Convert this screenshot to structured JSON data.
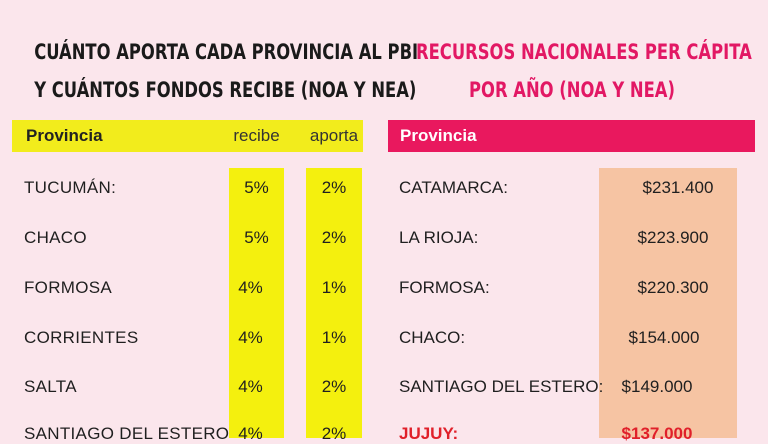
{
  "left": {
    "title_line1": "CUÁNTO APORTA CADA PROVINCIA AL PBI",
    "title_line2": "Y CUÁNTOS FONDOS RECIBE (NOA Y NEA)",
    "header": {
      "provincia": "Provincia",
      "recibe": "recibe",
      "aporta": "aporta"
    },
    "rows": [
      {
        "provincia": "TUCUMÁN:",
        "recibe": "5%",
        "aporta": "2%"
      },
      {
        "provincia": "CHACO",
        "recibe": "5%",
        "aporta": "2%"
      },
      {
        "provincia": "FORMOSA",
        "recibe": "4%",
        "aporta": "1%"
      },
      {
        "provincia": "CORRIENTES",
        "recibe": "4%",
        "aporta": "1%"
      },
      {
        "provincia": "SALTA",
        "recibe": "4%",
        "aporta": "2%"
      },
      {
        "provincia": "SANTIAGO DEL ESTERO",
        "recibe": "4%",
        "aporta": "2%"
      }
    ]
  },
  "right": {
    "title_line1": "RECURSOS NACIONALES PER CÁPITA",
    "title_line2": "POR AÑO (NOA Y NEA)",
    "header": {
      "provincia": "Provincia"
    },
    "rows": [
      {
        "provincia": "CATAMARCA:",
        "valor": "$231.400"
      },
      {
        "provincia": "LA RIOJA:",
        "valor": "$223.900"
      },
      {
        "provincia": "FORMOSA:",
        "valor": "$220.300"
      },
      {
        "provincia": "CHACO:",
        "valor": "$154.000"
      },
      {
        "provincia": "SANTIAGO DEL ESTERO:",
        "valor": "$149.000"
      },
      {
        "provincia": "JUJUY:",
        "valor": "$137.000"
      }
    ]
  },
  "colors": {
    "background": "#fbe6ec",
    "yellow_header": "#f2ec1c",
    "yellow_column": "#f4f00e",
    "pink_header": "#e9185e",
    "pink_title": "#e21864",
    "peach_column": "#f6c4a3",
    "jujuy_red": "#e0202a"
  }
}
